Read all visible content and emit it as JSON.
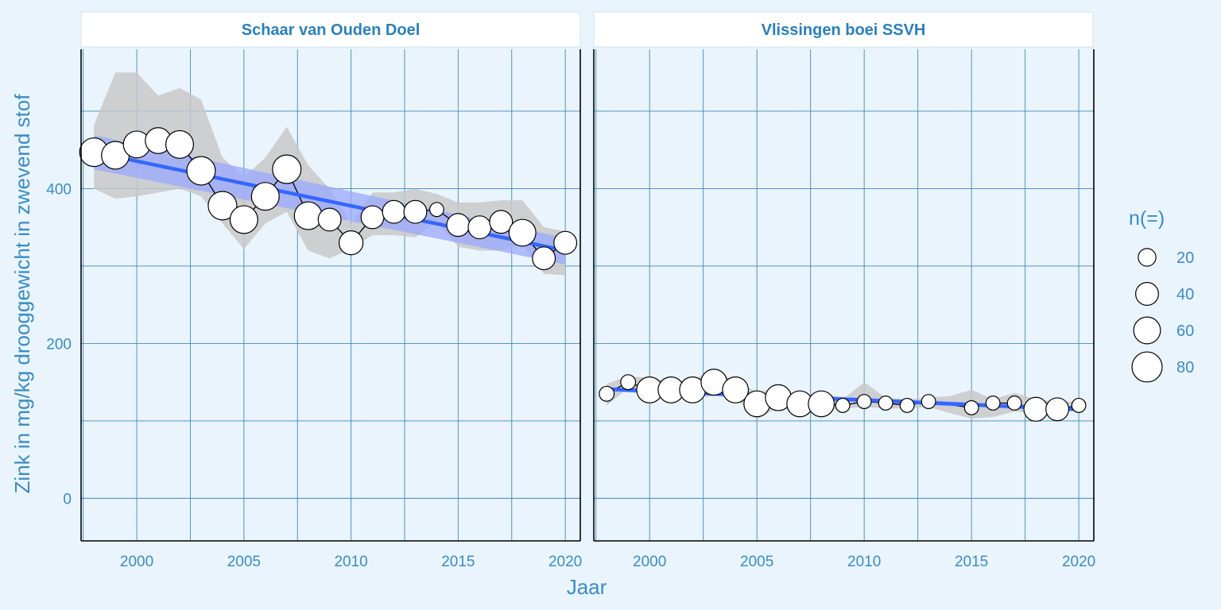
{
  "chart_data": {
    "type": "scatter",
    "ylabel": "Zink in mg/kg drooggewicht in zwevend stof",
    "xlabel": "Jaar",
    "xlim": [
      1997.4,
      2020.7
    ],
    "ylim": [
      -55,
      580
    ],
    "x_ticks": [
      2000,
      2005,
      2010,
      2015,
      2020
    ],
    "y_ticks": [
      0,
      200,
      400
    ],
    "y_minor": [
      100,
      300,
      500
    ],
    "grid": true,
    "colors": {
      "trend": "#3366ff",
      "trend_band": "#9aa8ff",
      "range_band": "#c8c8c8",
      "point_fill": "#ffffff",
      "point_stroke": "#000000"
    },
    "legend": {
      "title": "n(=)",
      "position": "right",
      "entries": [
        {
          "label": "20",
          "n": 20
        },
        {
          "label": "40",
          "n": 40
        },
        {
          "label": "60",
          "n": 60
        },
        {
          "label": "80",
          "n": 80
        }
      ]
    },
    "panels": [
      {
        "title": "Schaar van Ouden Doel",
        "points": [
          {
            "x": 1998,
            "y": 447,
            "n": 70
          },
          {
            "x": 1999,
            "y": 443,
            "n": 65
          },
          {
            "x": 2000,
            "y": 457,
            "n": 60
          },
          {
            "x": 2001,
            "y": 462,
            "n": 55
          },
          {
            "x": 2002,
            "y": 457,
            "n": 65
          },
          {
            "x": 2003,
            "y": 423,
            "n": 70
          },
          {
            "x": 2004,
            "y": 378,
            "n": 70
          },
          {
            "x": 2005,
            "y": 360,
            "n": 65
          },
          {
            "x": 2006,
            "y": 390,
            "n": 65
          },
          {
            "x": 2007,
            "y": 425,
            "n": 70
          },
          {
            "x": 2008,
            "y": 365,
            "n": 65
          },
          {
            "x": 2009,
            "y": 360,
            "n": 40
          },
          {
            "x": 2010,
            "y": 330,
            "n": 45
          },
          {
            "x": 2011,
            "y": 363,
            "n": 40
          },
          {
            "x": 2012,
            "y": 370,
            "n": 40
          },
          {
            "x": 2013,
            "y": 370,
            "n": 40
          },
          {
            "x": 2014,
            "y": 373,
            "n": 10
          },
          {
            "x": 2015,
            "y": 353,
            "n": 40
          },
          {
            "x": 2016,
            "y": 350,
            "n": 40
          },
          {
            "x": 2017,
            "y": 357,
            "n": 40
          },
          {
            "x": 2018,
            "y": 343,
            "n": 60
          },
          {
            "x": 2019,
            "y": 310,
            "n": 40
          },
          {
            "x": 2020,
            "y": 330,
            "n": 40
          }
        ],
        "range_upper": [
          482,
          550,
          550,
          520,
          530,
          515,
          440,
          415,
          440,
          480,
          430,
          400,
          355,
          395,
          395,
          400,
          393,
          382,
          382,
          385,
          385,
          350,
          345
        ],
        "range_lower": [
          400,
          387,
          390,
          395,
          400,
          390,
          355,
          322,
          355,
          370,
          320,
          310,
          322,
          340,
          340,
          337,
          357,
          325,
          320,
          320,
          328,
          290,
          288
        ],
        "trend": {
          "x": [
            1998,
            2020
          ],
          "y": [
            447,
            320
          ]
        },
        "trend_band": {
          "upper": [
            469,
            336
          ],
          "lower": [
            425,
            302
          ]
        }
      },
      {
        "title": "Vlissingen boei SSVH",
        "points": [
          {
            "x": 1998,
            "y": 135,
            "n": 12
          },
          {
            "x": 1999,
            "y": 150,
            "n": 12
          },
          {
            "x": 2000,
            "y": 140,
            "n": 55
          },
          {
            "x": 2001,
            "y": 140,
            "n": 55
          },
          {
            "x": 2002,
            "y": 140,
            "n": 55
          },
          {
            "x": 2003,
            "y": 150,
            "n": 55
          },
          {
            "x": 2004,
            "y": 140,
            "n": 55
          },
          {
            "x": 2005,
            "y": 122,
            "n": 55
          },
          {
            "x": 2006,
            "y": 130,
            "n": 55
          },
          {
            "x": 2007,
            "y": 122,
            "n": 55
          },
          {
            "x": 2008,
            "y": 122,
            "n": 55
          },
          {
            "x": 2009,
            "y": 120,
            "n": 10
          },
          {
            "x": 2010,
            "y": 125,
            "n": 10
          },
          {
            "x": 2011,
            "y": 123,
            "n": 10
          },
          {
            "x": 2012,
            "y": 120,
            "n": 10
          },
          {
            "x": 2013,
            "y": 125,
            "n": 10
          },
          {
            "x": 2015,
            "y": 117,
            "n": 10
          },
          {
            "x": 2016,
            "y": 123,
            "n": 10
          },
          {
            "x": 2017,
            "y": 123,
            "n": 10
          },
          {
            "x": 2018,
            "y": 115,
            "n": 45
          },
          {
            "x": 2019,
            "y": 115,
            "n": 40
          },
          {
            "x": 2020,
            "y": 120,
            "n": 10
          }
        ],
        "range_upper": [
          148,
          158,
          155,
          152,
          152,
          168,
          150,
          138,
          140,
          132,
          138,
          128,
          150,
          130,
          128,
          130,
          132,
          140,
          128,
          136,
          128,
          125,
          125
        ],
        "range_lower": [
          120,
          142,
          132,
          130,
          130,
          132,
          130,
          102,
          118,
          112,
          112,
          116,
          118,
          116,
          116,
          118,
          110,
          103,
          105,
          112,
          110,
          112,
          115
        ],
        "trend": {
          "x": [
            1998,
            2020
          ],
          "y": [
            141,
            115
          ]
        },
        "trend_band": {
          "upper": [
            144,
            118
          ],
          "lower": [
            138,
            112
          ]
        }
      }
    ]
  }
}
